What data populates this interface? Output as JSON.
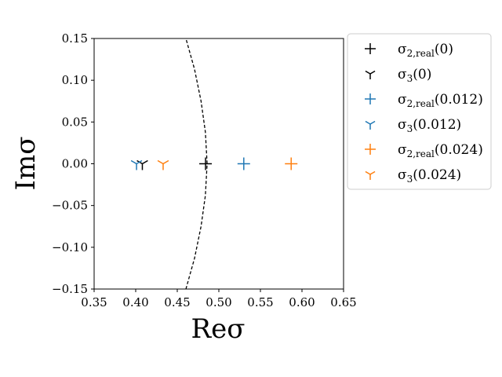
{
  "chart_data": {
    "type": "scatter",
    "title": "",
    "xlabel": "Reσ",
    "ylabel": "Imσ",
    "xlim": [
      0.35,
      0.65
    ],
    "ylim": [
      -0.15,
      0.15
    ],
    "xticks": [
      0.35,
      0.4,
      0.45,
      0.5,
      0.55,
      0.6,
      0.65
    ],
    "xtick_labels": [
      "0.35",
      "0.40",
      "0.45",
      "0.50",
      "0.55",
      "0.60",
      "0.65"
    ],
    "yticks": [
      -0.15,
      -0.1,
      -0.05,
      0.0,
      0.05,
      0.1,
      0.15
    ],
    "ytick_labels": [
      "−0.15",
      "−0.10",
      "−0.05",
      "0.00",
      "0.05",
      "0.10",
      "0.15"
    ],
    "grid": false,
    "legend_position": "outside-right-top",
    "series": [
      {
        "name": "σ2,real(0)",
        "legend": {
          "base": "σ",
          "sub": "2,real",
          "arg": "(0)"
        },
        "marker": "plus",
        "color": "#000000",
        "x": [
          0.484
        ],
        "y": [
          0.0
        ]
      },
      {
        "name": "σ3(0)",
        "legend": {
          "base": "σ",
          "sub": "3",
          "arg": "(0)"
        },
        "marker": "tri_down",
        "color": "#000000",
        "x": [
          0.408
        ],
        "y": [
          0.0
        ]
      },
      {
        "name": "σ2,real(0.012)",
        "legend": {
          "base": "σ",
          "sub": "2,real",
          "arg": "(0.012)"
        },
        "marker": "plus",
        "color": "#1f77b4",
        "x": [
          0.53
        ],
        "y": [
          0.0
        ]
      },
      {
        "name": "σ3(0.012)",
        "legend": {
          "base": "σ",
          "sub": "3",
          "arg": "(0.012)"
        },
        "marker": "tri_down",
        "color": "#1f77b4",
        "x": [
          0.401
        ],
        "y": [
          0.0
        ]
      },
      {
        "name": "σ2,real(0.024)",
        "legend": {
          "base": "σ",
          "sub": "2,real",
          "arg": "(0.024)"
        },
        "marker": "plus",
        "color": "#ff7f0e",
        "x": [
          0.587
        ],
        "y": [
          0.0
        ]
      },
      {
        "name": "σ3(0.024)",
        "legend": {
          "base": "σ",
          "sub": "3",
          "arg": "(0.024)"
        },
        "marker": "tri_down",
        "color": "#ff7f0e",
        "x": [
          0.433
        ],
        "y": [
          0.0
        ]
      }
    ],
    "reference_curve": {
      "style": "dashed",
      "color": "#000000",
      "x": [
        0.4604,
        0.4708,
        0.4786,
        0.4838,
        0.4859,
        0.4838,
        0.4786,
        0.4708,
        0.4604
      ],
      "y": [
        -0.15,
        -0.113,
        -0.075,
        -0.038,
        0.0,
        0.038,
        0.075,
        0.113,
        0.15
      ]
    }
  }
}
